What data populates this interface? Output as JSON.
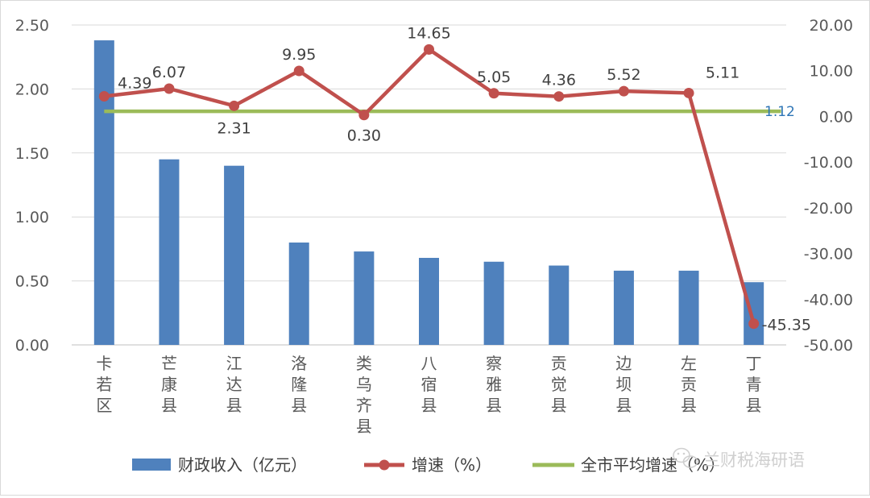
{
  "chart_data": {
    "type": "bar+line",
    "categories": [
      [
        "卡",
        "若",
        "区"
      ],
      [
        "芒",
        "康",
        "县"
      ],
      [
        "江",
        "达",
        "县"
      ],
      [
        "洛",
        "隆",
        "县"
      ],
      [
        "类",
        "乌",
        "齐",
        "县"
      ],
      [
        "八",
        "宿",
        "县"
      ],
      [
        "察",
        "雅",
        "县"
      ],
      [
        "贡",
        "觉",
        "县"
      ],
      [
        "边",
        "坝",
        "县"
      ],
      [
        "左",
        "贡",
        "县"
      ],
      [
        "丁",
        "青",
        "县"
      ]
    ],
    "series": [
      {
        "name": "财政收入（亿元）",
        "type": "bar",
        "axis": "left",
        "color": "#4f81bd",
        "values": [
          2.38,
          1.45,
          1.4,
          0.8,
          0.73,
          0.68,
          0.65,
          0.62,
          0.58,
          0.58,
          0.49
        ]
      },
      {
        "name": "增速（%）",
        "type": "line",
        "axis": "right",
        "color": "#c0504d",
        "values": [
          4.39,
          6.07,
          2.31,
          9.95,
          0.3,
          14.65,
          5.05,
          4.36,
          5.52,
          5.11,
          -45.35
        ],
        "labels": [
          "4.39",
          "6.07",
          "2.31",
          "9.95",
          "0.30",
          "14.65",
          "5.05",
          "4.36",
          "5.52",
          "5.11",
          "-45.35"
        ]
      },
      {
        "name": "全市平均增速（%）",
        "type": "line",
        "axis": "right",
        "color": "#9bbb59",
        "value": 1.12,
        "label": "1.12",
        "label_color": "#2e75b6"
      }
    ],
    "y_left": {
      "range": [
        0,
        2.5
      ],
      "ticks": [
        0,
        0.5,
        1.0,
        1.5,
        2.0,
        2.5
      ],
      "tick_labels": [
        "0.00",
        "0.50",
        "1.00",
        "1.50",
        "2.00",
        "2.50"
      ]
    },
    "y_right": {
      "range": [
        -50,
        20
      ],
      "ticks": [
        -50,
        -40,
        -30,
        -20,
        -10,
        0,
        10,
        20
      ],
      "tick_labels": [
        "-50.00",
        "-40.00",
        "-30.00",
        "-20.00",
        "-10.00",
        "0.00",
        "10.00",
        "20.00"
      ]
    },
    "grid": true,
    "legend_position": "bottom"
  },
  "watermark": {
    "icon": "wechat-icon",
    "text": "兰财税海研语"
  }
}
